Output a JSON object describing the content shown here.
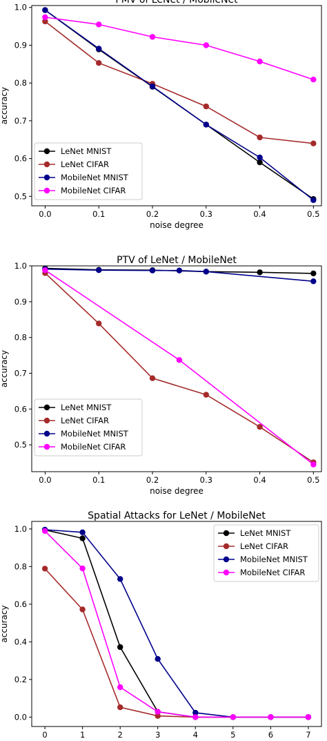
{
  "chart_data": [
    {
      "type": "line",
      "title": "PMV of LeNet / MobileNet",
      "xlabel": "noise degree",
      "ylabel": "accuracy",
      "x": [
        0.0,
        0.1,
        0.2,
        0.3,
        0.4,
        0.5
      ],
      "xticks": [
        "0.0",
        "0.1",
        "0.2",
        "0.3",
        "0.4",
        "0.5"
      ],
      "yticks": [
        "0.5",
        "0.6",
        "0.7",
        "0.8",
        "0.9",
        "1.0"
      ],
      "xlim": [
        -0.025,
        0.515
      ],
      "ylim": [
        0.475,
        1.005
      ],
      "legend_position": "lower-left",
      "series": [
        {
          "name": "LeNet MNIST",
          "color": "#000000",
          "x": [
            0.0,
            0.1,
            0.2,
            0.3,
            0.4,
            0.5
          ],
          "values": [
            0.993,
            0.889,
            0.79,
            0.69,
            0.59,
            0.493
          ]
        },
        {
          "name": "LeNet CIFAR",
          "color": "#a52a2a",
          "x": [
            0.0,
            0.1,
            0.2,
            0.3,
            0.4,
            0.5
          ],
          "values": [
            0.963,
            0.853,
            0.798,
            0.738,
            0.656,
            0.64
          ]
        },
        {
          "name": "MobileNet MNIST",
          "color": "#00008b",
          "x": [
            0.0,
            0.1,
            0.2,
            0.3,
            0.4,
            0.5
          ],
          "values": [
            0.993,
            0.891,
            0.791,
            0.69,
            0.603,
            0.49
          ]
        },
        {
          "name": "MobileNet CIFAR",
          "color": "#ff00ff",
          "x": [
            0.0,
            0.1,
            0.2,
            0.3,
            0.4,
            0.5
          ],
          "values": [
            0.974,
            0.955,
            0.922,
            0.9,
            0.857,
            0.809
          ]
        }
      ]
    },
    {
      "type": "line",
      "title": "PTV of LeNet / MobileNet",
      "xlabel": "noise degree",
      "ylabel": "accuracy",
      "xticks": [
        "0.0",
        "0.1",
        "0.2",
        "0.3",
        "0.4",
        "0.5"
      ],
      "yticks": [
        "0.5",
        "0.6",
        "0.7",
        "0.8",
        "0.9",
        "1.0"
      ],
      "xlim": [
        -0.025,
        0.515
      ],
      "ylim": [
        0.425,
        1.0
      ],
      "legend_position": "lower-left",
      "series": [
        {
          "name": "LeNet MNIST",
          "color": "#000000",
          "x": [
            0.0,
            0.1,
            0.2,
            0.3,
            0.4,
            0.5
          ],
          "values": [
            0.993,
            0.989,
            0.988,
            0.984,
            0.982,
            0.979
          ]
        },
        {
          "name": "LeNet CIFAR",
          "color": "#a52a2a",
          "x": [
            0.0,
            0.1,
            0.2,
            0.3,
            0.4,
            0.5
          ],
          "values": [
            0.98,
            0.839,
            0.686,
            0.64,
            0.55,
            0.451
          ]
        },
        {
          "name": "MobileNet MNIST",
          "color": "#00008b",
          "x": [
            0.0,
            0.1,
            0.2,
            0.25,
            0.3,
            0.5
          ],
          "values": [
            0.991,
            0.988,
            0.987,
            0.987,
            0.984,
            0.957
          ]
        },
        {
          "name": "MobileNet CIFAR",
          "color": "#ff00ff",
          "x": [
            0.0,
            0.25,
            0.5
          ],
          "values": [
            0.988,
            0.737,
            0.445
          ]
        }
      ]
    },
    {
      "type": "line",
      "title": "Spatial Attacks for LeNet / MobileNet",
      "xlabel": "strength",
      "ylabel": "accuracy",
      "x": [
        0,
        1,
        2,
        3,
        4,
        5,
        6,
        7
      ],
      "xticks": [
        "0",
        "1",
        "2",
        "3",
        "4",
        "5",
        "6",
        "7"
      ],
      "yticks": [
        "0.0",
        "0.2",
        "0.4",
        "0.6",
        "0.8",
        "1.0"
      ],
      "xlim": [
        -0.35,
        7.35
      ],
      "ylim": [
        -0.05,
        1.04
      ],
      "legend_position": "upper-right",
      "series": [
        {
          "name": "LeNet MNIST",
          "color": "#000000",
          "x": [
            0,
            1,
            2,
            3,
            4,
            5,
            6,
            7
          ],
          "values": [
            0.995,
            0.95,
            0.372,
            0.028,
            0.0,
            0.0,
            0.0,
            0.0
          ]
        },
        {
          "name": "LeNet CIFAR",
          "color": "#a52a2a",
          "x": [
            0,
            1,
            2,
            3,
            4,
            5,
            6,
            7
          ],
          "values": [
            0.789,
            0.572,
            0.052,
            0.006,
            0.0,
            0.0,
            0.0,
            0.0
          ]
        },
        {
          "name": "MobileNet MNIST",
          "color": "#00008b",
          "x": [
            0,
            1,
            2,
            3,
            4,
            5,
            6,
            7
          ],
          "values": [
            0.996,
            0.982,
            0.734,
            0.309,
            0.023,
            0.0,
            0.0,
            0.0
          ]
        },
        {
          "name": "MobileNet CIFAR",
          "color": "#ff00ff",
          "x": [
            0,
            1,
            2,
            3,
            4,
            5,
            6,
            7
          ],
          "values": [
            0.989,
            0.79,
            0.159,
            0.028,
            0.0,
            0.0,
            0.0,
            0.0
          ]
        }
      ]
    }
  ]
}
